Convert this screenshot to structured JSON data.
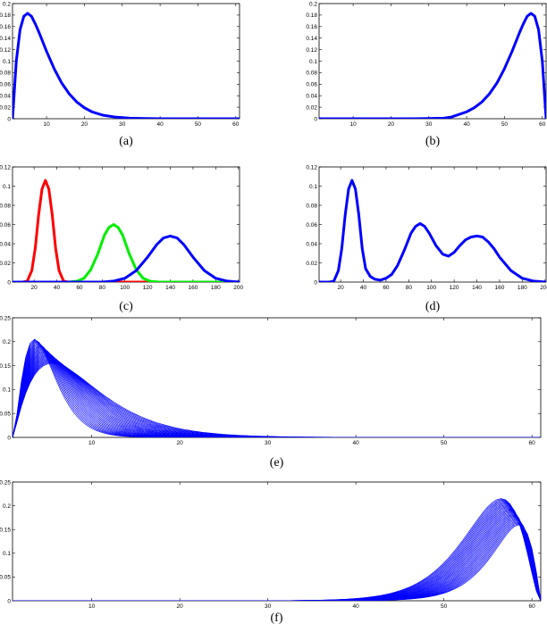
{
  "chart_data": [
    {
      "panel": "a",
      "caption": "(a)",
      "type": "line",
      "xlim": [
        1,
        61
      ],
      "ylim": [
        0,
        0.2
      ],
      "xticks": [
        10,
        20,
        30,
        40,
        50,
        60
      ],
      "yticks": [
        0,
        0.02,
        0.04,
        0.06,
        0.08,
        0.1,
        0.12,
        0.14,
        0.16,
        0.18,
        0.2
      ],
      "yticklabels": [
        "0",
        "0.02",
        "0.04",
        "0.06",
        "0.08",
        "0.1",
        "0.12",
        "0.14",
        "0.16",
        "0.18",
        "0.2"
      ],
      "series": [
        {
          "color": "#0000ff",
          "width": 3,
          "x": [
            1,
            2,
            3,
            4,
            5,
            6,
            7,
            8,
            10,
            12,
            14,
            16,
            18,
            20,
            22,
            25,
            28,
            32,
            36,
            40,
            50,
            61
          ],
          "y": [
            0,
            0.1,
            0.155,
            0.178,
            0.183,
            0.178,
            0.165,
            0.15,
            0.117,
            0.087,
            0.062,
            0.043,
            0.029,
            0.019,
            0.012,
            0.006,
            0.003,
            0.001,
            0.0004,
            0.0001,
            0,
            0
          ]
        }
      ]
    },
    {
      "panel": "b",
      "caption": "(b)",
      "type": "line",
      "xlim": [
        1,
        61
      ],
      "ylim": [
        0,
        0.2
      ],
      "xticks": [
        10,
        20,
        30,
        40,
        50,
        60
      ],
      "yticks": [
        0,
        0.02,
        0.04,
        0.06,
        0.08,
        0.1,
        0.12,
        0.14,
        0.16,
        0.18,
        0.2
      ],
      "yticklabels": [
        "0",
        "0.02",
        "0.04",
        "0.06",
        "0.08",
        "0.1",
        "0.12",
        "0.14",
        "0.16",
        "0.18",
        "0.2"
      ],
      "series": [
        {
          "color": "#0000ff",
          "width": 3,
          "x": [
            1,
            12,
            22,
            26,
            30,
            34,
            36,
            40,
            42,
            44,
            46,
            48,
            50,
            52,
            54,
            55,
            56,
            57,
            58,
            59,
            60,
            61
          ],
          "y": [
            0,
            0,
            0,
            0.0001,
            0.0004,
            0.001,
            0.003,
            0.012,
            0.019,
            0.029,
            0.043,
            0.062,
            0.087,
            0.117,
            0.15,
            0.165,
            0.178,
            0.183,
            0.178,
            0.155,
            0.1,
            0
          ]
        }
      ]
    },
    {
      "panel": "c",
      "caption": "(c)",
      "type": "line",
      "xlim": [
        1,
        201
      ],
      "ylim": [
        0,
        0.12
      ],
      "xticks": [
        20,
        40,
        60,
        80,
        100,
        120,
        140,
        160,
        180,
        200
      ],
      "yticks": [
        0,
        0.02,
        0.04,
        0.06,
        0.08,
        0.1,
        0.12
      ],
      "yticklabels": [
        "0",
        "0.02",
        "0.04",
        "0.06",
        "0.08",
        "0.1",
        "0.12"
      ],
      "series": [
        {
          "color": "#ff0000",
          "width": 3,
          "x": [
            1,
            10,
            14,
            18,
            21,
            24,
            27,
            30,
            33,
            36,
            39,
            42,
            46,
            50,
            60,
            100,
            200
          ],
          "y": [
            0,
            0,
            0.001,
            0.012,
            0.035,
            0.07,
            0.097,
            0.106,
            0.097,
            0.07,
            0.035,
            0.012,
            0.001,
            0,
            0,
            0,
            0
          ]
        }
      ]
    },
    {
      "panel": "c2",
      "type": "line",
      "series": [
        {
          "color": "#00ee00",
          "width": 3,
          "x": [
            1,
            50,
            58,
            64,
            70,
            76,
            82,
            86,
            90,
            94,
            98,
            104,
            110,
            116,
            122,
            130,
            200
          ],
          "y": [
            0,
            0,
            0.001,
            0.004,
            0.013,
            0.029,
            0.049,
            0.057,
            0.06,
            0.057,
            0.049,
            0.029,
            0.013,
            0.004,
            0.001,
            0,
            0
          ]
        }
      ]
    },
    {
      "panel": "c3",
      "type": "line",
      "series": [
        {
          "color": "#0000ff",
          "width": 3,
          "x": [
            1,
            80,
            90,
            100,
            110,
            120,
            128,
            134,
            140,
            146,
            152,
            160,
            170,
            180,
            190,
            201
          ],
          "y": [
            0,
            0,
            0.001,
            0.004,
            0.012,
            0.026,
            0.039,
            0.046,
            0.048,
            0.046,
            0.039,
            0.026,
            0.012,
            0.004,
            0.001,
            0
          ]
        }
      ]
    },
    {
      "panel": "d",
      "caption": "(d)",
      "type": "line",
      "xlim": [
        1,
        201
      ],
      "ylim": [
        0,
        0.12
      ],
      "xticks": [
        20,
        40,
        60,
        80,
        100,
        120,
        140,
        160,
        180,
        200
      ],
      "yticks": [
        0,
        0.02,
        0.04,
        0.06,
        0.08,
        0.1,
        0.12
      ],
      "yticklabels": [
        "0",
        "0.02",
        "0.04",
        "0.06",
        "0.08",
        "0.1",
        "0.12"
      ],
      "series": [
        {
          "color": "#0000ff",
          "width": 3,
          "x": [
            1,
            10,
            14,
            18,
            21,
            24,
            27,
            30,
            33,
            36,
            39,
            42,
            46,
            50,
            55,
            60,
            65,
            70,
            76,
            82,
            86,
            90,
            94,
            98,
            104,
            110,
            115,
            120,
            125,
            130,
            135,
            140,
            145,
            150,
            155,
            160,
            170,
            180,
            190,
            201
          ],
          "y": [
            0,
            0,
            0.001,
            0.012,
            0.035,
            0.07,
            0.097,
            0.106,
            0.097,
            0.07,
            0.035,
            0.014,
            0.006,
            0.003,
            0.002,
            0.004,
            0.008,
            0.017,
            0.033,
            0.051,
            0.058,
            0.061,
            0.058,
            0.051,
            0.038,
            0.029,
            0.027,
            0.031,
            0.038,
            0.044,
            0.047,
            0.048,
            0.047,
            0.042,
            0.035,
            0.026,
            0.012,
            0.004,
            0.001,
            0
          ]
        }
      ]
    },
    {
      "panel": "e",
      "caption": "(e)",
      "type": "line",
      "xlim": [
        1,
        61
      ],
      "ylim": [
        0,
        0.25
      ],
      "xticks": [
        10,
        20,
        30,
        40,
        50,
        60
      ],
      "yticks": [
        0,
        0.05,
        0.1,
        0.15,
        0.2,
        0.25
      ],
      "yticklabels": [
        "0",
        "0.05",
        "0.1",
        "0.15",
        "0.2",
        "0.25"
      ],
      "bundle": {
        "count": 30,
        "color": "#0000ff",
        "width": 0.7,
        "peak_x": [
          3.5,
          5.5
        ],
        "peak_y": [
          0.155,
          0.205
        ],
        "direction": "right"
      }
    },
    {
      "panel": "f",
      "caption": "(f)",
      "type": "line",
      "xlim": [
        1,
        61
      ],
      "ylim": [
        0,
        0.25
      ],
      "xticks": [
        10,
        20,
        30,
        40,
        50,
        60
      ],
      "yticks": [
        0,
        0.05,
        0.1,
        0.15,
        0.2,
        0.25
      ],
      "yticklabels": [
        "0",
        "0.05",
        "0.1",
        "0.15",
        "0.2",
        "0.25"
      ],
      "bundle": {
        "count": 30,
        "color": "#0000ff",
        "width": 0.7,
        "peak_x": [
          56.5,
          58.5
        ],
        "peak_y": [
          0.16,
          0.215
        ],
        "direction": "left"
      }
    }
  ]
}
